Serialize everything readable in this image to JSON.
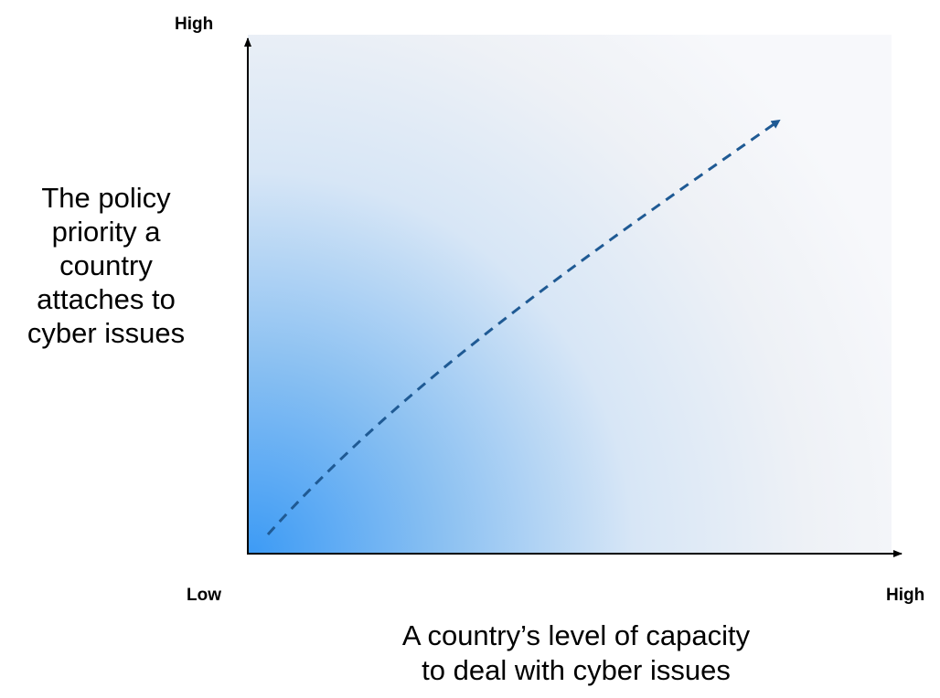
{
  "y_axis": {
    "high_label": "High",
    "title": "The policy\npriority a\ncountry\nattaches to\ncyber issues"
  },
  "x_axis": {
    "low_label": "Low",
    "high_label": "High",
    "title": "A country’s level of capacity\nto deal with cyber issues"
  },
  "colors": {
    "gradient_strong": "#3d9bf5",
    "gradient_mid": "#cfe2f7",
    "gradient_light": "#f7f8fb",
    "arrow": "#1f5a94",
    "axis": "#000000"
  }
}
